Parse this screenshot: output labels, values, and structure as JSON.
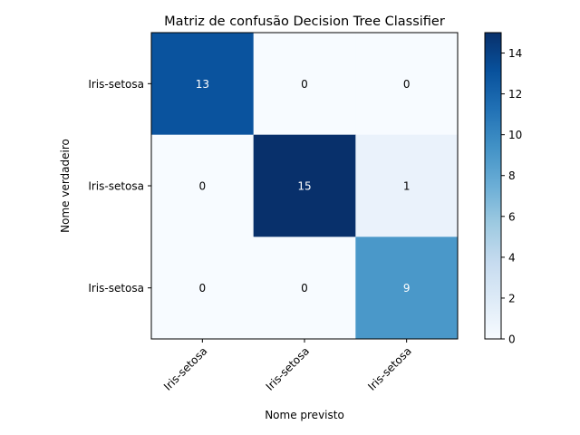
{
  "chart_data": {
    "type": "heatmap",
    "title": "Matriz de confusão Decision Tree Classifier",
    "xlabel": "Nome previsto",
    "ylabel": "Nome verdadeiro",
    "x_categories": [
      "Iris-setosa",
      "Iris-setosa",
      "Iris-setosa"
    ],
    "y_categories": [
      "Iris-setosa",
      "Iris-setosa",
      "Iris-setosa"
    ],
    "matrix": [
      [
        13,
        0,
        0
      ],
      [
        0,
        15,
        1
      ],
      [
        0,
        0,
        9
      ]
    ],
    "colorbar": {
      "range": [
        0,
        15
      ],
      "ticks": [
        "0",
        "2",
        "4",
        "6",
        "8",
        "10",
        "12",
        "14"
      ]
    },
    "colormap": "Blues",
    "colors": {
      "low": "#f7fbff",
      "high": "#08306b",
      "text_dark": "#000000",
      "text_light": "#ffffff"
    }
  }
}
